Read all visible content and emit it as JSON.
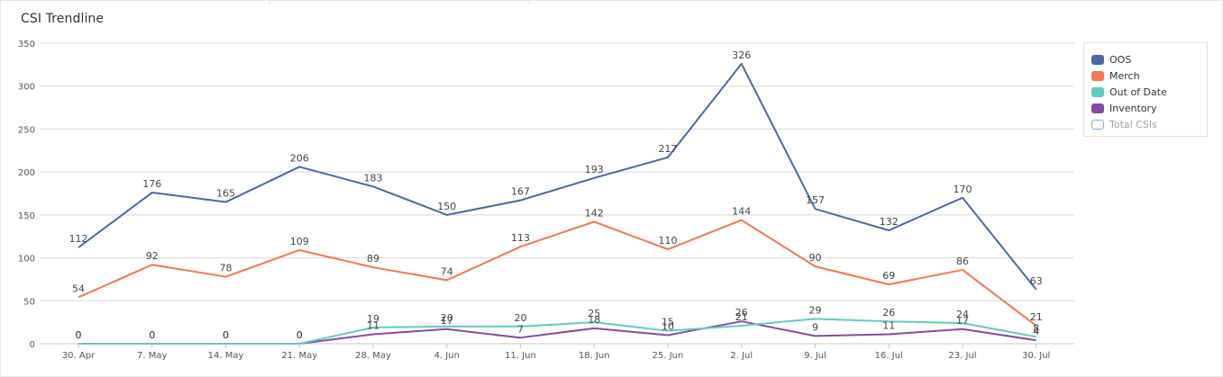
{
  "chart_data": {
    "type": "line",
    "title": "CSI Trendline",
    "categories": [
      "30. Apr",
      "7. May",
      "14. May",
      "21. May",
      "28. May",
      "4. Jun",
      "11. Jun",
      "18. Jun",
      "25. Jun",
      "2. Jul",
      "9. Jul",
      "16. Jul",
      "23. Jul",
      "30. Jul"
    ],
    "ylim": [
      0,
      350
    ],
    "yticks": [
      0,
      50,
      100,
      150,
      200,
      250,
      300,
      350
    ],
    "grid": true,
    "legend_position": "right",
    "series": [
      {
        "name": "OOS",
        "color": "#4a6aa4",
        "values": [
          112,
          176,
          165,
          206,
          183,
          150,
          167,
          193,
          217,
          326,
          157,
          132,
          170,
          63
        ]
      },
      {
        "name": "Merch",
        "color": "#f47652",
        "values": [
          54,
          92,
          78,
          109,
          89,
          74,
          113,
          142,
          110,
          144,
          90,
          69,
          86,
          21
        ]
      },
      {
        "name": "Out of Date",
        "color": "#5ecdc0",
        "values": [
          0,
          0,
          0,
          0,
          19,
          20,
          20,
          25,
          15,
          21,
          29,
          26,
          24,
          8
        ]
      },
      {
        "name": "Inventory",
        "color": "#8a48a6",
        "values": [
          0,
          0,
          0,
          0,
          11,
          17,
          7,
          18,
          10,
          26,
          9,
          11,
          17,
          4
        ]
      }
    ],
    "legend": [
      {
        "name": "OOS",
        "color": "#4a6aa4",
        "hidden": false
      },
      {
        "name": "Merch",
        "color": "#f47652",
        "hidden": false
      },
      {
        "name": "Out of Date",
        "color": "#5ecdc0",
        "hidden": false
      },
      {
        "name": "Inventory",
        "color": "#8a48a6",
        "hidden": false
      },
      {
        "name": "Total CSIs",
        "color": "#7ea6d8",
        "hidden": true
      }
    ]
  }
}
